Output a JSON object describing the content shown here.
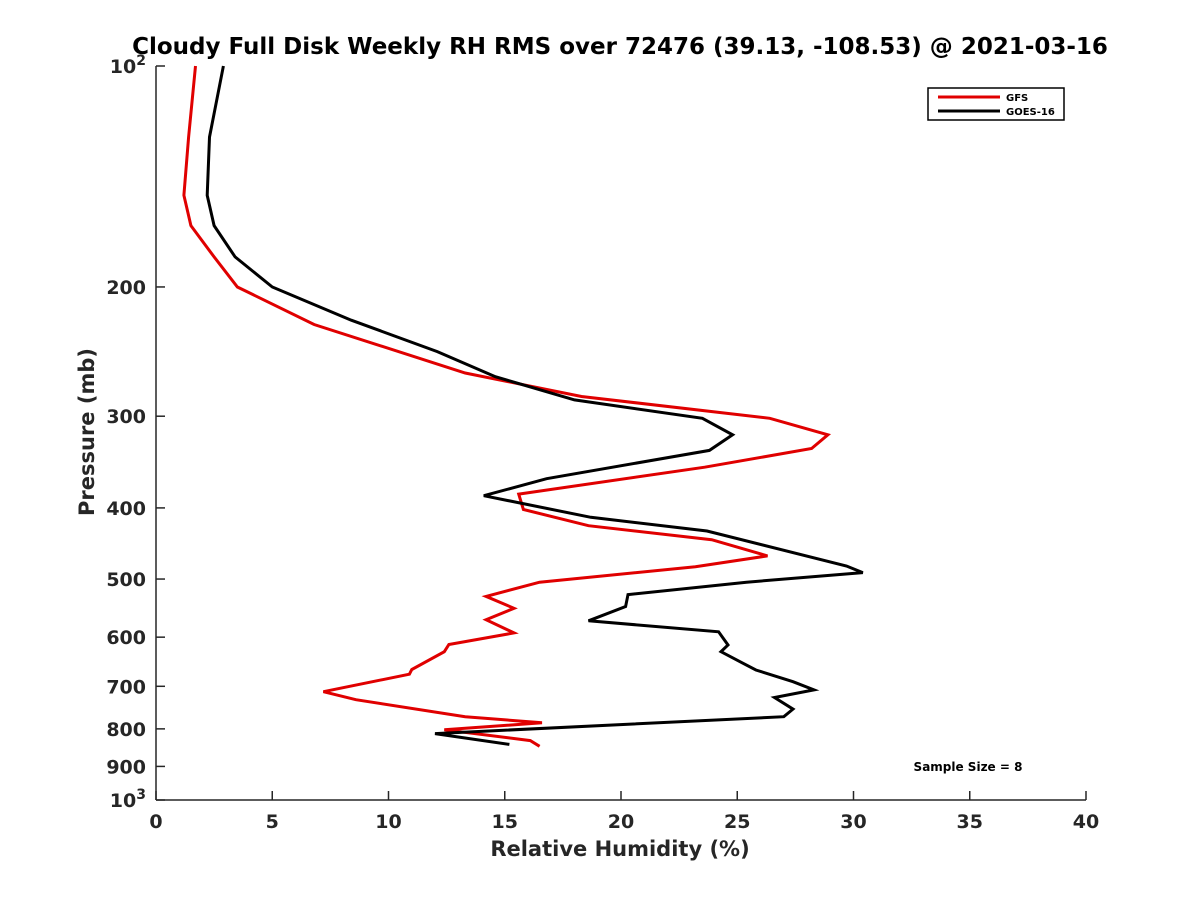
{
  "chart_data": {
    "type": "line",
    "title": "Cloudy Full Disk Weekly RH RMS over 72476 (39.13, -108.53) @ 2021-03-16",
    "xlabel": "Relative Humidity (%)",
    "ylabel": "Pressure (mb)",
    "xlim": [
      0,
      40
    ],
    "ylim": [
      100,
      1000
    ],
    "y_scale": "log",
    "y_reversed": true,
    "grid": false,
    "legend_position": "top-right",
    "annotation": "Sample Size = 8",
    "x_ticks": [
      {
        "value": 0,
        "label": "0"
      },
      {
        "value": 5,
        "label": "5"
      },
      {
        "value": 10,
        "label": "10"
      },
      {
        "value": 15,
        "label": "15"
      },
      {
        "value": 20,
        "label": "20"
      },
      {
        "value": 25,
        "label": "25"
      },
      {
        "value": 30,
        "label": "30"
      },
      {
        "value": 35,
        "label": "35"
      },
      {
        "value": 40,
        "label": "40"
      }
    ],
    "y_ticks": [
      {
        "value": 100,
        "base": "10",
        "exp": "2"
      },
      {
        "value": 200,
        "label": "200"
      },
      {
        "value": 300,
        "label": "300"
      },
      {
        "value": 400,
        "label": "400"
      },
      {
        "value": 500,
        "label": "500"
      },
      {
        "value": 600,
        "label": "600"
      },
      {
        "value": 700,
        "label": "700"
      },
      {
        "value": 800,
        "label": "800"
      },
      {
        "value": 900,
        "label": "900"
      },
      {
        "value": 1000,
        "base": "10",
        "exp": "3"
      }
    ],
    "series": [
      {
        "name": "GFS",
        "color": "#e00000",
        "points": [
          [
            1.7,
            100
          ],
          [
            1.4,
            125
          ],
          [
            1.2,
            150
          ],
          [
            1.5,
            165
          ],
          [
            2.5,
            182
          ],
          [
            3.5,
            200
          ],
          [
            6.8,
            225
          ],
          [
            13.3,
            262
          ],
          [
            18.3,
            282
          ],
          [
            26.4,
            302
          ],
          [
            28.9,
            318
          ],
          [
            28.2,
            332
          ],
          [
            23.6,
            352
          ],
          [
            15.6,
            383
          ],
          [
            15.8,
            402
          ],
          [
            18.6,
            423
          ],
          [
            23.9,
            442
          ],
          [
            26.3,
            465
          ],
          [
            23.2,
            481
          ],
          [
            16.5,
            505
          ],
          [
            14.2,
            528
          ],
          [
            15.4,
            548
          ],
          [
            14.2,
            568
          ],
          [
            15.4,
            592
          ],
          [
            12.6,
            614
          ],
          [
            12.4,
            628
          ],
          [
            11.0,
            664
          ],
          [
            10.9,
            674
          ],
          [
            7.2,
            712
          ],
          [
            8.6,
            730
          ],
          [
            13.3,
            770
          ],
          [
            16.6,
            785
          ],
          [
            12.4,
            802
          ],
          [
            16.1,
            830
          ],
          [
            16.5,
            845
          ]
        ]
      },
      {
        "name": "GOES-16",
        "color": "#000000",
        "points": [
          [
            2.9,
            100
          ],
          [
            2.3,
            125
          ],
          [
            2.2,
            150
          ],
          [
            2.5,
            165
          ],
          [
            3.4,
            182
          ],
          [
            5.0,
            200
          ],
          [
            8.4,
            222
          ],
          [
            12.1,
            245
          ],
          [
            14.6,
            265
          ],
          [
            18.0,
            285
          ],
          [
            23.5,
            302
          ],
          [
            24.8,
            318
          ],
          [
            23.8,
            334
          ],
          [
            16.8,
            365
          ],
          [
            14.1,
            385
          ],
          [
            18.7,
            412
          ],
          [
            23.7,
            430
          ],
          [
            29.7,
            480
          ],
          [
            30.4,
            490
          ],
          [
            25.4,
            505
          ],
          [
            20.3,
            525
          ],
          [
            20.2,
            545
          ],
          [
            18.6,
            570
          ],
          [
            24.2,
            590
          ],
          [
            24.6,
            615
          ],
          [
            24.3,
            628
          ],
          [
            25.2,
            650
          ],
          [
            25.8,
            665
          ],
          [
            27.4,
            690
          ],
          [
            28.3,
            708
          ],
          [
            26.6,
            725
          ],
          [
            27.4,
            752
          ],
          [
            27.0,
            770
          ],
          [
            12.0,
            812
          ],
          [
            15.2,
            840
          ]
        ]
      }
    ]
  }
}
